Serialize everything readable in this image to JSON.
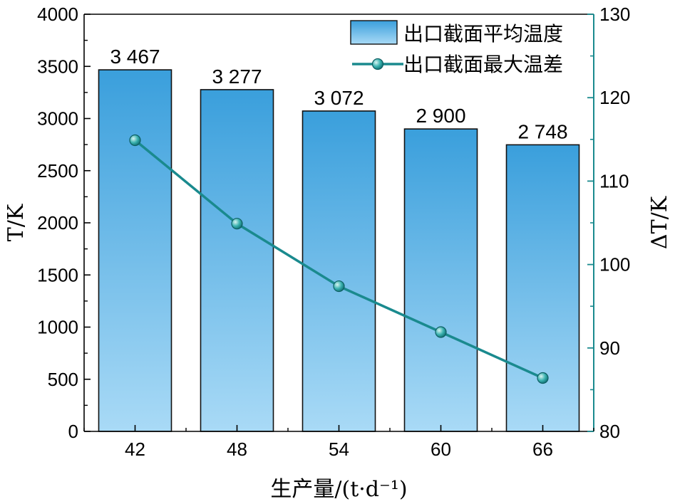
{
  "chart_data": {
    "type": "bar",
    "categories": [
      "42",
      "48",
      "54",
      "60",
      "66"
    ],
    "series": [
      {
        "name": "出口截面平均温度",
        "type": "bar",
        "axis": "left",
        "values": [
          3467,
          3277,
          3072,
          2900,
          2748
        ],
        "labels": [
          "3 467",
          "3 277",
          "3 072",
          "2 900",
          "2 748"
        ]
      },
      {
        "name": "出口截面最大温差",
        "type": "line",
        "axis": "right",
        "values": [
          114.9,
          104.9,
          97.4,
          91.9,
          86.4
        ]
      }
    ],
    "xlabel": "生产量/(t·d⁻¹)",
    "ylabel_left": "T/K",
    "ylabel_right": "ΔT/K",
    "ylim_left": [
      0,
      4000
    ],
    "ylim_right": [
      80,
      130
    ],
    "yticks_left": [
      0,
      500,
      1000,
      1500,
      2000,
      2500,
      3000,
      3500,
      4000
    ],
    "yticks_right": [
      80,
      90,
      100,
      110,
      120,
      130
    ],
    "legend_position": "top-right",
    "grid": false,
    "colors": {
      "bar_top": "#3a9fdc",
      "bar_bottom": "#a9daf6",
      "line": "#1a8a8e",
      "right_axis": "#1a8a8e"
    }
  }
}
